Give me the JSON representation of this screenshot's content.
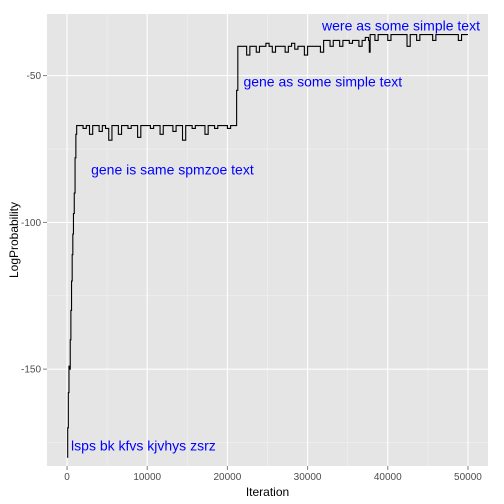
{
  "chart_data": {
    "type": "line",
    "title": "",
    "xlabel": "Iteration",
    "ylabel": "LogProbability",
    "xlim": [
      -2500,
      52500
    ],
    "ylim": [
      -183,
      -29
    ],
    "x_ticks": [
      0,
      10000,
      20000,
      30000,
      40000,
      50000
    ],
    "x_tick_labels": [
      "0",
      "10000",
      "20000",
      "30000",
      "40000",
      "50000"
    ],
    "y_ticks": [
      -150,
      -100,
      -50
    ],
    "y_tick_labels": [
      "-150",
      "-100",
      "-50"
    ],
    "grid": true,
    "legend": "none",
    "series": [
      {
        "x": [
          0,
          80,
          160,
          240,
          320,
          400,
          480,
          560,
          640,
          720,
          800,
          900,
          1000,
          1100,
          1200,
          1500,
          2000,
          2400,
          2800,
          3200,
          3600,
          4000,
          4400,
          4800,
          5200,
          5600,
          6000,
          6400,
          6800,
          7200,
          7600,
          8000,
          8400,
          8800,
          9200,
          9600,
          10000,
          10400,
          10800,
          11200,
          11600,
          12000,
          12400,
          12800,
          13200,
          13600,
          14000,
          14400,
          14800,
          15200,
          15600,
          16000,
          16400,
          16800,
          17200,
          17600,
          18000,
          18400,
          18800,
          19200,
          19600,
          20000,
          20400,
          20800,
          21000,
          21150,
          21300,
          21400,
          21600,
          22000,
          22400,
          22800,
          23200,
          23600,
          24000,
          24400,
          24800,
          25200,
          25600,
          26000,
          26400,
          26800,
          27200,
          27600,
          28000,
          28400,
          28800,
          29200,
          29600,
          30000,
          30400,
          30800,
          31200,
          31600,
          32000,
          32400,
          32800,
          33200,
          33600,
          34000,
          34400,
          34800,
          35200,
          35600,
          36000,
          36400,
          36800,
          37200,
          37600,
          37700,
          37800,
          38000,
          38400,
          38800,
          39200,
          39600,
          40000,
          40400,
          40800,
          41200,
          41600,
          42000,
          42400,
          42800,
          43200,
          43600,
          44000,
          44400,
          44800,
          45200,
          45600,
          46000,
          46400,
          46800,
          47200,
          47600,
          48000,
          48400,
          48800,
          49200,
          49600,
          50000
        ],
        "y": [
          -180,
          -170,
          -158,
          -149,
          -150,
          -140,
          -130,
          -120,
          -111,
          -104,
          -97,
          -90,
          -78,
          -70,
          -67,
          -67,
          -68,
          -67,
          -70,
          -67,
          -67,
          -69,
          -67,
          -68,
          -72,
          -67,
          -67,
          -70,
          -67,
          -67,
          -68,
          -67,
          -67,
          -71,
          -67,
          -67,
          -67,
          -68,
          -67,
          -67,
          -70,
          -67,
          -67,
          -67,
          -69,
          -67,
          -67,
          -72,
          -67,
          -67,
          -68,
          -67,
          -67,
          -67,
          -70,
          -67,
          -67,
          -68,
          -67,
          -67,
          -67,
          -68,
          -67,
          -67,
          -67,
          -55,
          -40,
          -40,
          -40,
          -40,
          -43,
          -40,
          -40,
          -42,
          -40,
          -40,
          -39,
          -40,
          -42,
          -40,
          -40,
          -40,
          -42,
          -40,
          -39,
          -41,
          -40,
          -40,
          -43,
          -40,
          -40,
          -40,
          -40,
          -42,
          -38,
          -38,
          -40,
          -38,
          -38,
          -40,
          -38,
          -38,
          -39,
          -38,
          -38,
          -40,
          -38,
          -37,
          -38,
          -42,
          -36,
          -36,
          -38,
          -36,
          -36,
          -36,
          -38,
          -36,
          -36,
          -36,
          -36,
          -36,
          -40,
          -36,
          -36,
          -38,
          -36,
          -36,
          -36,
          -36,
          -38,
          -36,
          -36,
          -36,
          -36,
          -36,
          -36,
          -36,
          -38,
          -36,
          -36,
          -36
        ]
      }
    ],
    "annotations": [
      {
        "text": "lsps bk kfvs kjvhys zsrz",
        "x": 500,
        "y": -176,
        "anchor": "start",
        "color": "#0000ff"
      },
      {
        "text": "gene is same spmzoe text",
        "x": 3000,
        "y": -82,
        "anchor": "start",
        "color": "#0000ff"
      },
      {
        "text": "gene as some simple text",
        "x": 22000,
        "y": -52,
        "anchor": "start",
        "color": "#0000ff"
      },
      {
        "text": "were as some simple text",
        "x": 31800,
        "y": -33,
        "anchor": "start",
        "color": "#0000ff"
      }
    ]
  },
  "colors": {
    "panel_background": "#e5e5e5",
    "grid_major": "#ffffff",
    "grid_minor": "#f2f2f2",
    "line": "#000000",
    "tick_mark": "#7f7f7f"
  }
}
